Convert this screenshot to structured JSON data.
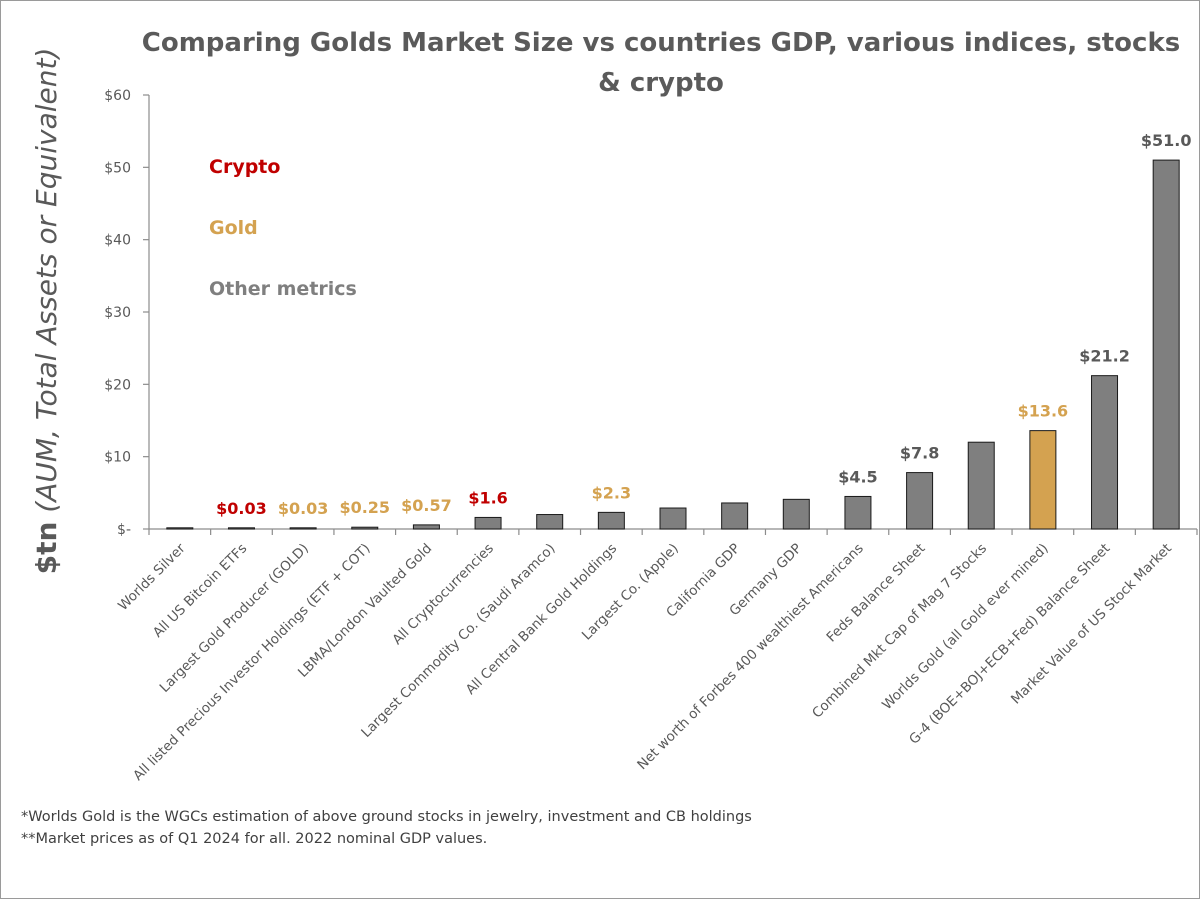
{
  "colors": {
    "crypto": "#c00000",
    "gold": "#d4a250",
    "other": "#7f7f7f",
    "axis": "#8c8c8c",
    "text": "#595959"
  },
  "legend": {
    "crypto": "Crypto",
    "gold": "Gold",
    "other": "Other metrics"
  },
  "footnotes": [
    "*Worlds Gold is the WGCs estimation of above ground stocks in jewelry, investment and CB holdings",
    "**Market prices as of Q1 2024 for all. 2022 nominal GDP values."
  ],
  "chart_data": {
    "type": "bar",
    "title_lines": [
      "Comparing Golds Market Size vs countries GDP, various indices, stocks",
      "& crypto"
    ],
    "ylabel_bold": "$tn",
    "ylabel_rest": " (AUM, Total Assets or Equivalent)",
    "ylim": [
      0,
      60
    ],
    "yticks": [
      0,
      10,
      20,
      30,
      40,
      50,
      60
    ],
    "ytick_labels": [
      "$-",
      "$10",
      "$20",
      "$30",
      "$40",
      "$50",
      "$60"
    ],
    "categories": [
      "Worlds Silver",
      "All US Bitcoin ETFs",
      "Largest Gold Producer (GOLD)",
      "All listed Precious Investor Holdings (ETF + COT)",
      "LBMA/London Vaulted Gold",
      "All Cryptocurrencies",
      "Largest Commodity Co. (Saudi Aramco)",
      "All Central Bank Gold Holdings",
      "Largest Co. (Apple)",
      "California GDP",
      "Germany GDP",
      "Net worth of Forbes 400 wealthiest Americans",
      "Feds Balance Sheet",
      "Combined Mkt Cap of Mag 7 Stocks",
      "Worlds Gold (all Gold ever mined)",
      "G-4 (BOE+BOJ+ECB+Fed) Balance Sheet",
      "Market Value of US Stock Market"
    ],
    "values": [
      0.03,
      0.03,
      0.03,
      0.25,
      0.57,
      1.6,
      2.0,
      2.3,
      2.9,
      3.6,
      4.1,
      4.5,
      7.8,
      12.0,
      13.6,
      21.2,
      51.0
    ],
    "data_labels": [
      "",
      "$0.03",
      "$0.03",
      "$0.25",
      "$0.57",
      "$1.6",
      "",
      "$2.3",
      "",
      "",
      "",
      "$4.5",
      "$7.8",
      "",
      "$13.6",
      "$21.2",
      "$51.0"
    ],
    "groups": [
      "other",
      "crypto",
      "gold",
      "gold",
      "gold",
      "crypto",
      "other",
      "gold",
      "other",
      "other",
      "other",
      "other",
      "other",
      "other",
      "gold",
      "other",
      "other"
    ],
    "bar_colors": [
      "other",
      "other",
      "other",
      "other",
      "other",
      "other",
      "other",
      "other",
      "other",
      "other",
      "other",
      "other",
      "other",
      "other",
      "gold",
      "other",
      "other"
    ],
    "grid": false,
    "legend_position": "top-left"
  }
}
